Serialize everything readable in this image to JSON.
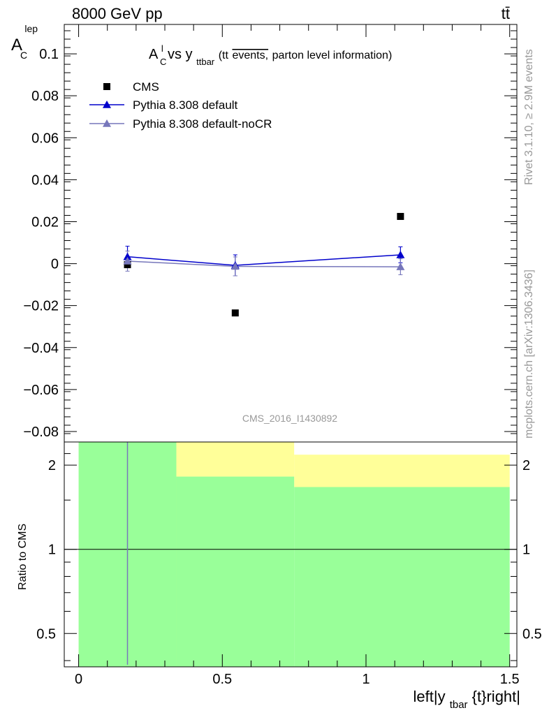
{
  "header": {
    "left": "8000 GeV pp",
    "right": "tt̄"
  },
  "side": {
    "top": "Rivet 3.1.10, ≥ 2.9M events",
    "bottom": "mcplots.cern.ch [arXiv:1306.3436]"
  },
  "chart_data": [
    {
      "type": "scatter",
      "title": "A^l_C vs y_ttbar (tt events, parton level information)",
      "title_parts": {
        "main": "A",
        "sup": "l",
        "sub": "C",
        "vs": " vs y",
        "sub2": "ttbar",
        "paren_open": " (tt",
        "overlined": "events,",
        "paren_rest": " parton level information)"
      },
      "ylabel": "A",
      "ylabel_sup": "lep",
      "ylabel_sub": "C",
      "watermark": "CMS_2016_I1430892",
      "xlim": [
        -0.05,
        1.525
      ],
      "ylim": [
        -0.085,
        0.114
      ],
      "yticks": [
        -0.08,
        -0.06,
        -0.04,
        -0.02,
        0,
        0.02,
        0.04,
        0.06,
        0.08,
        0.1
      ],
      "ytick_labels": [
        "−0.08",
        "−0.06",
        "−0.04",
        "−0.02",
        "0",
        "0.02",
        "0.04",
        "0.06",
        "0.08",
        "0.1"
      ],
      "legend_position": "top-left",
      "series": [
        {
          "name": "CMS",
          "marker": "square",
          "color": "#000000",
          "x": [
            0.17,
            0.545,
            1.12
          ],
          "y": [
            -0.0005,
            -0.0235,
            0.0225
          ]
        },
        {
          "name": "Pythia 8.308 default",
          "marker": "triangle",
          "color": "#0000cc",
          "x": [
            0.17,
            0.545,
            1.12
          ],
          "y": [
            0.0033,
            -0.0008,
            0.0042
          ],
          "err": [
            0.005,
            0.005,
            0.0038
          ]
        },
        {
          "name": "Pythia 8.308 default-noCR",
          "marker": "triangle",
          "color": "#7777bb",
          "x": [
            0.17,
            0.545,
            1.12
          ],
          "y": [
            0.0012,
            -0.0013,
            -0.0015
          ],
          "err": [
            0.0048,
            0.0045,
            0.0038
          ]
        }
      ]
    },
    {
      "type": "area",
      "ylabel": "Ratio to CMS",
      "xlabel": "left|y_tbar{t}right|",
      "xlabel_parts": {
        "pre": "left|y",
        "sub": "tbar",
        "post": "{t}right|"
      },
      "xlim": [
        -0.05,
        1.525
      ],
      "ylim": [
        0.38,
        2.42
      ],
      "yscale": "log",
      "yticks": [
        0.5,
        1,
        2
      ],
      "ytick_labels": [
        "0.5",
        "1",
        "2"
      ],
      "xticks": [
        0,
        0.5,
        1,
        1.5
      ],
      "xtick_labels": [
        "0",
        "0.5",
        "1",
        "1.5"
      ],
      "bands": [
        {
          "name": "yellow",
          "color": "#ffff99",
          "bins": [
            [
              0.0,
              0.34,
              0.3,
              2.5
            ],
            [
              0.34,
              0.75,
              1.82,
              2.5
            ],
            [
              0.75,
              1.5,
              1.67,
              2.18
            ]
          ]
        },
        {
          "name": "green",
          "color": "#99ff99",
          "bins": [
            [
              0.0,
              0.34,
              0.3,
              2.5
            ],
            [
              0.34,
              0.75,
              0.3,
              1.82
            ],
            [
              0.75,
              1.5,
              0.3,
              1.67
            ]
          ]
        }
      ],
      "reference_line": 1,
      "vertical_line": {
        "x": 0.17,
        "color": "#7777bb"
      }
    }
  ]
}
